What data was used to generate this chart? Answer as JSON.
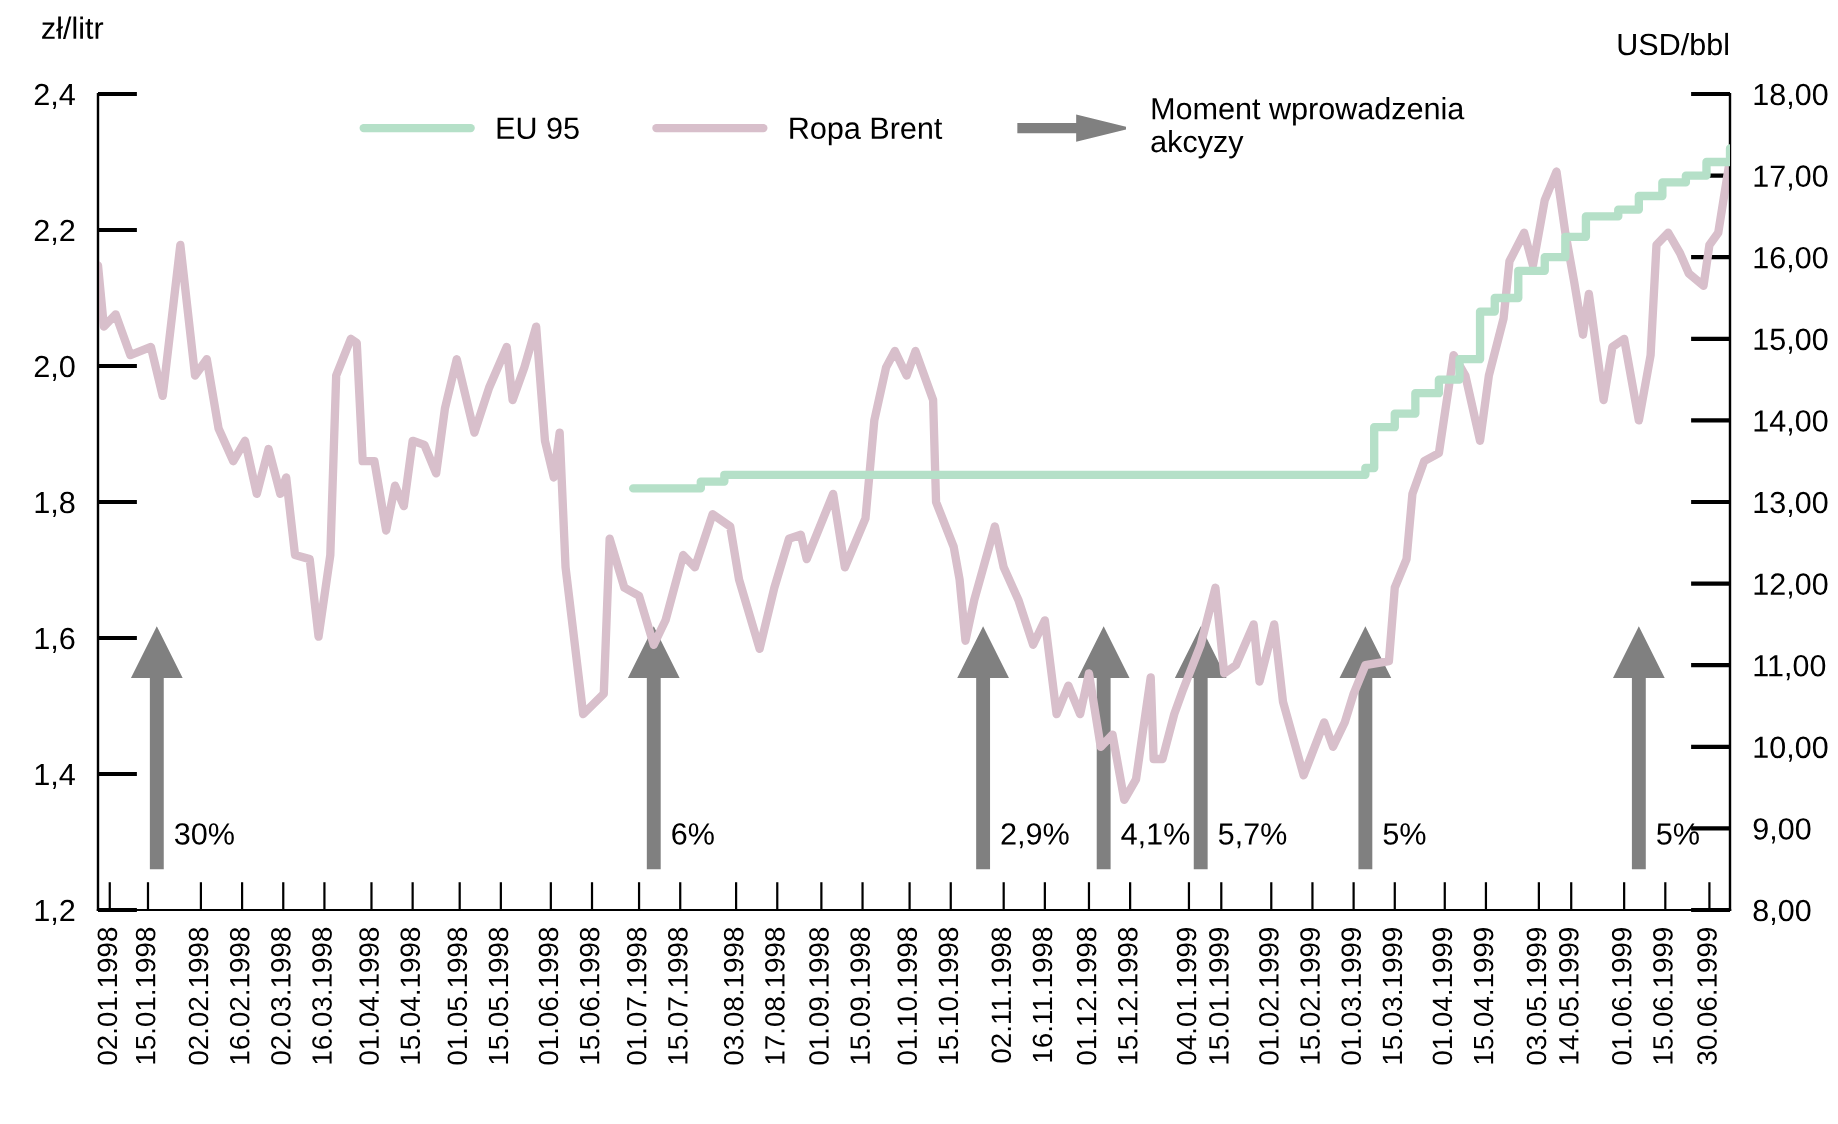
{
  "chart_data": {
    "type": "line",
    "ylabel": "zł/litr",
    "y2label": "USD/bbl",
    "legend": "top",
    "xlim": [
      "1997-12-29",
      "1999-07-07"
    ],
    "xticks": [
      {
        "value": "1998-01-02",
        "label": "02.01.1998"
      },
      {
        "value": "1998-01-15",
        "label": "15.01.1998"
      },
      {
        "value": "1998-02-02",
        "label": "02.02.1998"
      },
      {
        "value": "1998-02-16",
        "label": "16.02.1998"
      },
      {
        "value": "1998-03-02",
        "label": "02.03.1998"
      },
      {
        "value": "1998-03-16",
        "label": "16.03.1998"
      },
      {
        "value": "1998-04-01",
        "label": "01.04.1998"
      },
      {
        "value": "1998-04-15",
        "label": "15.04.1998"
      },
      {
        "value": "1998-05-01",
        "label": "01.05.1998"
      },
      {
        "value": "1998-05-15",
        "label": "15.05.1998"
      },
      {
        "value": "1998-06-01",
        "label": "01.06.1998"
      },
      {
        "value": "1998-06-15",
        "label": "15.06.1998"
      },
      {
        "value": "1998-07-01",
        "label": "01.07.1998"
      },
      {
        "value": "1998-07-15",
        "label": "15.07.1998"
      },
      {
        "value": "1998-08-03",
        "label": "03.08.1998"
      },
      {
        "value": "1998-08-17",
        "label": "17.08.1998"
      },
      {
        "value": "1998-09-01",
        "label": "01.09.1998"
      },
      {
        "value": "1998-09-15",
        "label": "15.09.1998"
      },
      {
        "value": "1998-10-01",
        "label": "01.10.1998"
      },
      {
        "value": "1998-10-15",
        "label": "15.10.1998"
      },
      {
        "value": "1998-11-02",
        "label": "02.11.1998"
      },
      {
        "value": "1998-11-16",
        "label": "16.11.1998"
      },
      {
        "value": "1998-12-01",
        "label": "01.12.1998"
      },
      {
        "value": "1998-12-15",
        "label": "15.12.1998"
      },
      {
        "value": "1999-01-04",
        "label": "04.01.1999"
      },
      {
        "value": "1999-01-15",
        "label": "15.01.1999"
      },
      {
        "value": "1999-02-01",
        "label": "01.02.1999"
      },
      {
        "value": "1999-02-15",
        "label": "15.02.1999"
      },
      {
        "value": "1999-03-01",
        "label": "01.03.1999"
      },
      {
        "value": "1999-03-15",
        "label": "15.03.1999"
      },
      {
        "value": "1999-04-01",
        "label": "01.04.1999"
      },
      {
        "value": "1999-04-15",
        "label": "15.04.1999"
      },
      {
        "value": "1999-05-03",
        "label": "03.05.1999"
      },
      {
        "value": "1999-05-14",
        "label": "14.05.1999"
      },
      {
        "value": "1999-06-01",
        "label": "01.06.1999"
      },
      {
        "value": "1999-06-15",
        "label": "15.06.1999"
      },
      {
        "value": "1999-06-30",
        "label": "30.06.1999"
      }
    ],
    "ylim": [
      1.2,
      2.4
    ],
    "yticks": [
      {
        "value": 1.2,
        "label": "1,2"
      },
      {
        "value": 1.4,
        "label": "1,4"
      },
      {
        "value": 1.6,
        "label": "1,6"
      },
      {
        "value": 1.8,
        "label": "1,8"
      },
      {
        "value": 2.0,
        "label": "2,0"
      },
      {
        "value": 2.2,
        "label": "2,2"
      },
      {
        "value": 2.4,
        "label": "2,4"
      }
    ],
    "y2lim": [
      8,
      18
    ],
    "y2ticks": [
      {
        "value": 8,
        "label": "8,00"
      },
      {
        "value": 9,
        "label": "9,00"
      },
      {
        "value": 10,
        "label": "10,00"
      },
      {
        "value": 11,
        "label": "11,00"
      },
      {
        "value": 12,
        "label": "12,00"
      },
      {
        "value": 13,
        "label": "13,00"
      },
      {
        "value": 14,
        "label": "14,00"
      },
      {
        "value": 15,
        "label": "15,00"
      },
      {
        "value": 16,
        "label": "16,00"
      },
      {
        "value": 17,
        "label": "17,00"
      },
      {
        "value": 18,
        "label": "18,00"
      }
    ],
    "series": [
      {
        "name": "EU 95",
        "type": "step",
        "color": "#b5e0c8",
        "x": [
          "1998-06-29",
          "1998-07-22",
          "1998-07-30",
          "1999-03-05",
          "1999-03-08",
          "1999-03-15",
          "1999-03-22",
          "1999-03-30",
          "1999-04-06",
          "1999-04-13",
          "1999-04-18",
          "1999-04-26",
          "1999-05-05",
          "1999-05-12",
          "1999-05-19",
          "1999-05-30",
          "1999-06-06",
          "1999-06-14",
          "1999-06-22",
          "1999-06-29",
          "1999-07-07"
        ],
        "values": [
          1.82,
          1.83,
          1.84,
          1.85,
          1.91,
          1.93,
          1.96,
          1.98,
          2.01,
          2.08,
          2.1,
          2.14,
          2.16,
          2.19,
          2.22,
          2.23,
          2.25,
          2.27,
          2.28,
          2.3,
          2.32
        ]
      },
      {
        "name": "Ropa Brent",
        "axis": "y2",
        "color": "#d8bfcb",
        "x": [
          "1997-12-29",
          "1997-12-31",
          "1998-01-04",
          "1998-01-09",
          "1998-01-16",
          "1998-01-20",
          "1998-01-26",
          "1998-01-31",
          "1998-02-04",
          "1998-02-08",
          "1998-02-13",
          "1998-02-17",
          "1998-02-21",
          "1998-02-25",
          "1998-03-01",
          "1998-03-03",
          "1998-03-06",
          "1998-03-11",
          "1998-03-14",
          "1998-03-18",
          "1998-03-20",
          "1998-03-25",
          "1998-03-27",
          "1998-03-29",
          "1998-04-02",
          "1998-04-06",
          "1998-04-09",
          "1998-04-12",
          "1998-04-15",
          "1998-04-19",
          "1998-04-23",
          "1998-04-26",
          "1998-04-30",
          "1998-05-06",
          "1998-05-11",
          "1998-05-17",
          "1998-05-19",
          "1998-05-23",
          "1998-05-27",
          "1998-05-30",
          "1998-06-02",
          "1998-06-04",
          "1998-06-06",
          "1998-06-12",
          "1998-06-19",
          "1998-06-21",
          "1998-06-26",
          "1998-07-01",
          "1998-07-06",
          "1998-07-10",
          "1998-07-13",
          "1998-07-16",
          "1998-07-20",
          "1998-07-26",
          "1998-08-01",
          "1998-08-04",
          "1998-08-11",
          "1998-08-16",
          "1998-08-21",
          "1998-08-25",
          "1998-08-27",
          "1998-09-05",
          "1998-09-09",
          "1998-09-16",
          "1998-09-19",
          "1998-09-23",
          "1998-09-26",
          "1998-09-30",
          "1998-10-03",
          "1998-10-09",
          "1998-10-10",
          "1998-10-16",
          "1998-10-18",
          "1998-10-20",
          "1998-10-23",
          "1998-10-30",
          "1998-11-02",
          "1998-11-07",
          "1998-11-12",
          "1998-11-16",
          "1998-11-20",
          "1998-11-24",
          "1998-11-28",
          "1998-12-01",
          "1998-12-05",
          "1998-12-09",
          "1998-12-13",
          "1998-12-17",
          "1998-12-22",
          "1998-12-23",
          "1998-12-26",
          "1998-12-30",
          "1999-01-02",
          "1999-01-08",
          "1999-01-13",
          "1999-01-16",
          "1999-01-20",
          "1999-01-26",
          "1999-01-28",
          "1999-02-02",
          "1999-02-05",
          "1999-02-12",
          "1999-02-19",
          "1999-02-22",
          "1999-02-26",
          "1999-03-01",
          "1999-03-05",
          "1999-03-13",
          "1999-03-15",
          "1999-03-19",
          "1999-03-21",
          "1999-03-25",
          "1999-03-30",
          "1999-04-04",
          "1999-04-08",
          "1999-04-13",
          "1999-04-16",
          "1999-04-21",
          "1999-04-23",
          "1999-04-28",
          "1999-05-01",
          "1999-05-05",
          "1999-05-09",
          "1999-05-12",
          "1999-05-15",
          "1999-05-18",
          "1999-05-20",
          "1999-05-25",
          "1999-05-28",
          "1999-06-01",
          "1999-06-06",
          "1999-06-10",
          "1999-06-12",
          "1999-06-16",
          "1999-06-20",
          "1999-06-23",
          "1999-06-28",
          "1999-06-30",
          "1999-07-03",
          "1999-07-07"
        ],
        "values": [
          15.9,
          15.15,
          15.3,
          14.8,
          14.9,
          14.3,
          16.15,
          14.55,
          14.75,
          13.9,
          13.5,
          13.75,
          13.1,
          13.65,
          13.1,
          13.3,
          12.35,
          12.3,
          11.35,
          12.35,
          14.55,
          15.0,
          14.95,
          13.5,
          13.5,
          12.65,
          13.2,
          12.95,
          13.75,
          13.7,
          13.35,
          14.15,
          14.75,
          13.85,
          14.4,
          14.9,
          14.25,
          14.65,
          15.15,
          13.75,
          13.3,
          13.85,
          12.2,
          10.4,
          10.65,
          12.55,
          11.95,
          11.85,
          11.25,
          11.55,
          11.95,
          12.35,
          12.2,
          12.85,
          12.7,
          12.05,
          11.2,
          11.95,
          12.55,
          12.6,
          12.3,
          13.1,
          12.2,
          12.8,
          14.0,
          14.65,
          14.85,
          14.55,
          14.85,
          14.25,
          13.0,
          12.45,
          12.05,
          11.3,
          11.8,
          12.7,
          12.2,
          11.8,
          11.25,
          11.55,
          10.4,
          10.75,
          10.4,
          10.9,
          10.0,
          10.15,
          9.35,
          9.6,
          10.85,
          9.85,
          9.85,
          10.4,
          10.7,
          11.25,
          11.95,
          10.9,
          11.0,
          11.5,
          10.8,
          11.5,
          10.55,
          9.65,
          10.3,
          10.0,
          10.3,
          10.65,
          11.0,
          11.05,
          11.95,
          12.3,
          13.1,
          13.5,
          13.6,
          14.8,
          14.55,
          13.75,
          14.55,
          15.25,
          15.95,
          16.3,
          15.9,
          16.7,
          17.05,
          16.3,
          15.7,
          15.05,
          15.55,
          14.25,
          14.9,
          15.0,
          14.0,
          14.8,
          16.15,
          16.3,
          16.05,
          15.8,
          15.65,
          16.15,
          16.3,
          17.2
        ]
      }
    ],
    "annotations": [
      "Moment wprowadzenia\nakcyzy"
    ],
    "ref_lines": [
      {
        "axis": "x",
        "value": "1998-01-18",
        "label": "30%",
        "color": "#808080"
      },
      {
        "axis": "x",
        "value": "1998-07-06",
        "label": "6%",
        "color": "#808080"
      },
      {
        "axis": "x",
        "value": "1998-10-26",
        "label": "2,9%",
        "color": "#808080"
      },
      {
        "axis": "x",
        "value": "1998-12-06",
        "label": "4,1%",
        "color": "#808080"
      },
      {
        "axis": "x",
        "value": "1999-01-08",
        "label": "5,7%",
        "color": "#808080"
      },
      {
        "axis": "x",
        "value": "1999-03-05",
        "label": "5%",
        "color": "#808080"
      },
      {
        "axis": "x",
        "value": "1999-06-06",
        "label": "5%",
        "color": "#808080"
      }
    ]
  }
}
